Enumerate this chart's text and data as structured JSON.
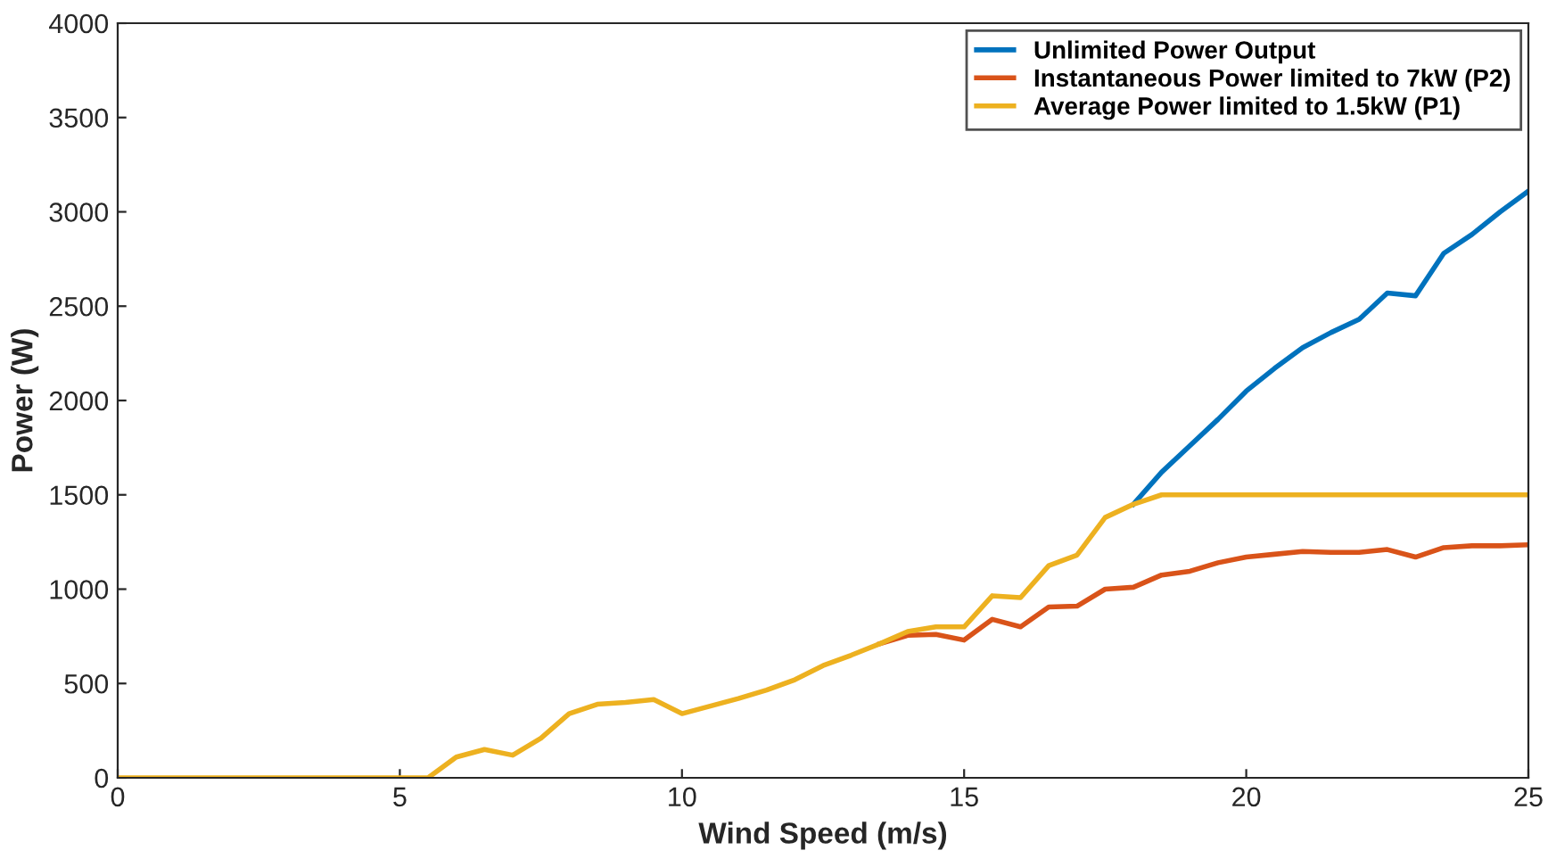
{
  "chart_data": {
    "type": "line",
    "xlabel": "Wind Speed (m/s)",
    "ylabel": "Power (W)",
    "x": [
      0,
      0.5,
      1,
      1.5,
      2,
      2.5,
      3,
      3.5,
      4,
      4.5,
      5,
      5.5,
      6,
      6.5,
      7,
      7.5,
      8,
      8.5,
      9,
      9.5,
      10,
      10.5,
      11,
      11.5,
      12,
      12.5,
      13,
      13.5,
      14,
      14.5,
      15,
      15.5,
      16,
      16.5,
      17,
      17.5,
      18,
      18.5,
      19,
      19.5,
      20,
      20.5,
      21,
      21.5,
      22,
      22.5,
      23,
      23.5,
      24,
      24.5,
      25
    ],
    "series": [
      {
        "name": "Unlimited Power Output",
        "color": "#0072bd",
        "values": [
          null,
          null,
          null,
          null,
          null,
          null,
          null,
          null,
          null,
          null,
          null,
          null,
          null,
          null,
          null,
          null,
          null,
          null,
          null,
          null,
          null,
          null,
          null,
          null,
          null,
          null,
          null,
          null,
          null,
          null,
          null,
          null,
          null,
          null,
          null,
          null,
          1450,
          1620,
          1760,
          1900,
          2050,
          2170,
          2280,
          2360,
          2430,
          2570,
          2555,
          2780,
          2880,
          3000,
          3110
        ]
      },
      {
        "name": "Instantaneous Power limited to 7kW (P2)",
        "color": "#d95319",
        "values": [
          null,
          null,
          null,
          null,
          null,
          null,
          null,
          null,
          null,
          null,
          null,
          null,
          null,
          null,
          null,
          null,
          null,
          null,
          null,
          null,
          null,
          null,
          null,
          null,
          null,
          null,
          null,
          710,
          755,
          760,
          730,
          840,
          800,
          905,
          910,
          1000,
          1010,
          1075,
          1095,
          1140,
          1170,
          1185,
          1200,
          1195,
          1195,
          1210,
          1170,
          1220,
          1230,
          1230,
          1235
        ]
      },
      {
        "name": "Average Power limited to 1.5kW (P1)",
        "color": "#edb120",
        "values": [
          0,
          0,
          0,
          0,
          0,
          0,
          0,
          0,
          0,
          0,
          0,
          0,
          110,
          150,
          120,
          210,
          340,
          390,
          400,
          415,
          340,
          380,
          420,
          465,
          520,
          595,
          650,
          710,
          775,
          800,
          800,
          965,
          955,
          1125,
          1180,
          1380,
          1450,
          1500,
          1500,
          1500,
          1500,
          1500,
          1500,
          1500,
          1500,
          1500,
          1500,
          1500,
          1500,
          1500,
          1500
        ]
      }
    ],
    "xlim": [
      0,
      25
    ],
    "xticks": [
      0,
      5,
      10,
      15,
      20,
      25
    ],
    "ylim": [
      0,
      4000
    ],
    "yticks": [
      0,
      500,
      1000,
      1500,
      2000,
      2500,
      3000,
      3500,
      4000
    ],
    "grid": false,
    "legend": "top right",
    "line_style": "solid",
    "marker": "none"
  }
}
